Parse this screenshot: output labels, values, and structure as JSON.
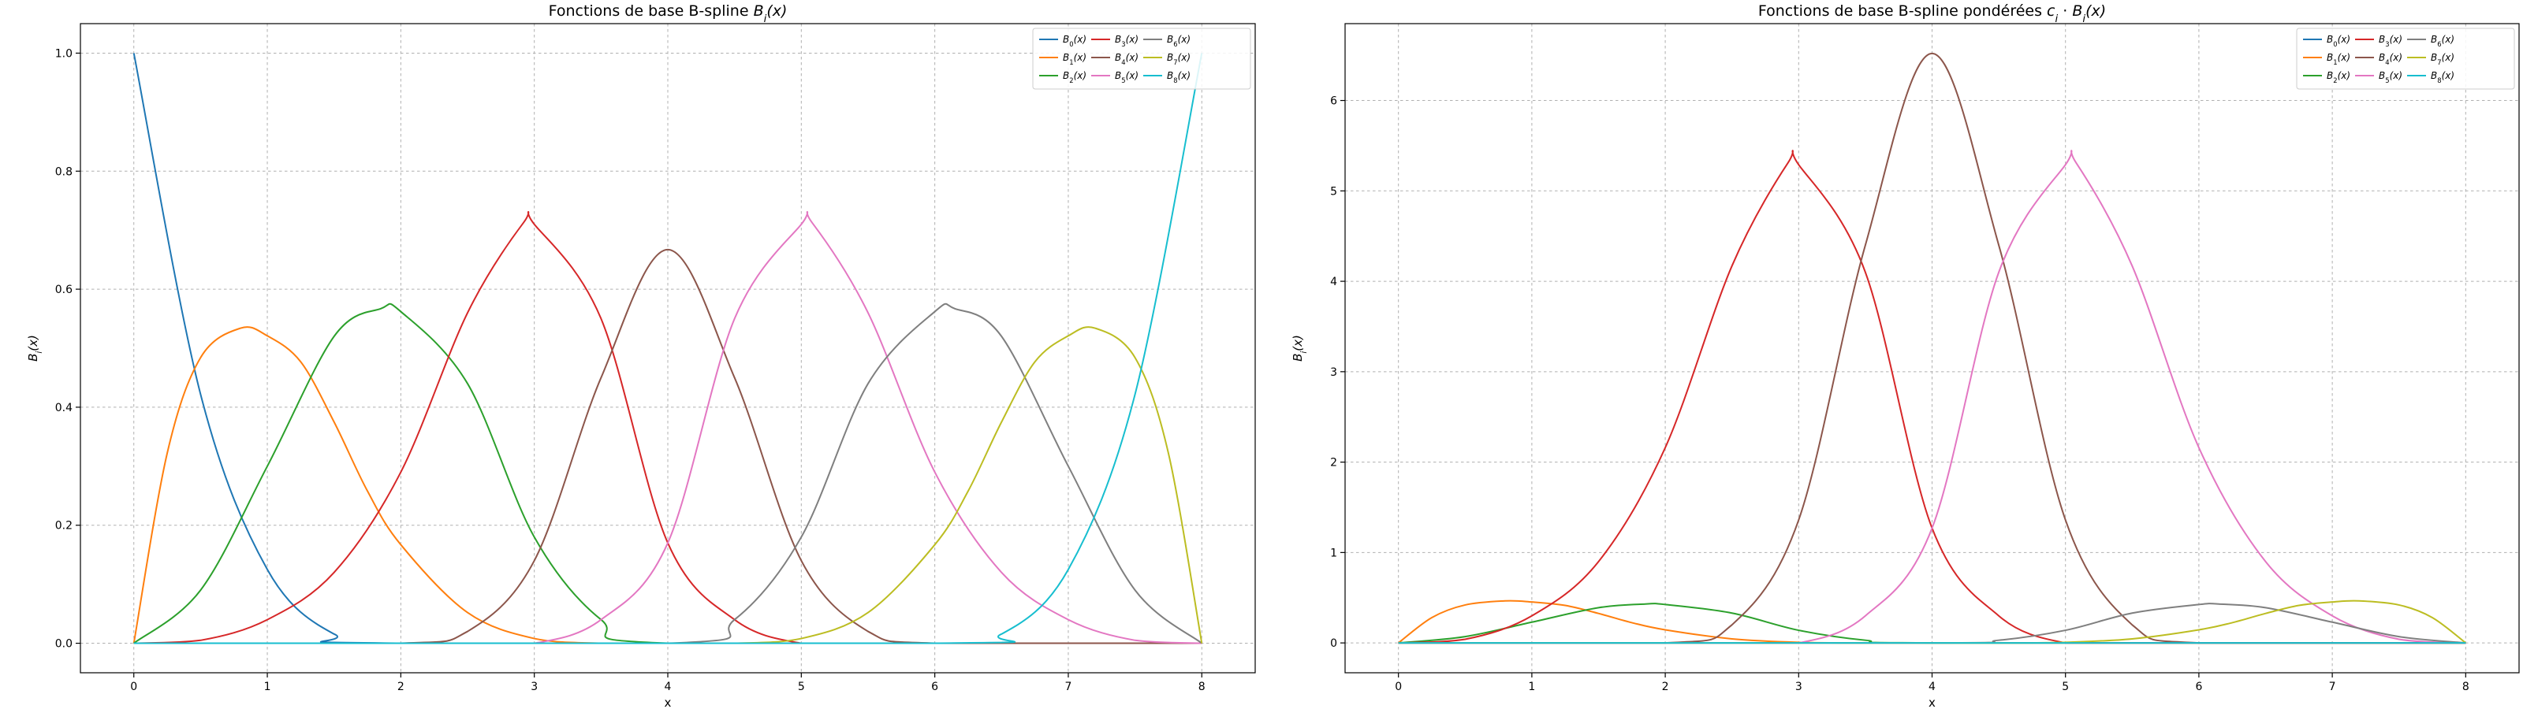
{
  "chart_data": [
    {
      "type": "line",
      "title": "Fonctions de base B-spline B_i(x)",
      "title_parts": [
        "Fonctions de base B-spline ",
        "B",
        "i",
        "(x)"
      ],
      "xlabel": "x",
      "ylabel_parts": [
        "B",
        "i",
        "(x)"
      ],
      "xlim": [
        -0.4,
        8.4
      ],
      "ylim": [
        -0.05,
        1.05
      ],
      "xticks": [
        0,
        1,
        2,
        3,
        4,
        5,
        6,
        7,
        8
      ],
      "yticks": [
        0.0,
        0.2,
        0.4,
        0.6,
        0.8,
        1.0
      ],
      "ytick_labels": [
        "0.0",
        "0.2",
        "0.4",
        "0.6",
        "0.8",
        "1.0"
      ],
      "grid": true,
      "legend": "top-right",
      "legend_columns": 4,
      "series": [
        {
          "name": "B_0(x)",
          "base": "B",
          "sub": "0",
          "suffix": "(x)",
          "color": "#1f77b4",
          "x": [
            0,
            0.5,
            1.0,
            1.5,
            2.0,
            8
          ],
          "y": [
            1.0,
            0.4219,
            0.125,
            0.0156,
            0.0,
            0.0
          ]
        },
        {
          "name": "B_1(x)",
          "base": "B",
          "sub": "1",
          "suffix": "(x)",
          "color": "#ff7f0e",
          "x": [
            0,
            0.25,
            0.5,
            0.8,
            1.0,
            1.25,
            1.5,
            1.75,
            2.0,
            2.5,
            3.0,
            3.5,
            4.0,
            8
          ],
          "y": [
            0.0,
            0.322,
            0.484,
            0.534,
            0.521,
            0.477,
            0.375,
            0.258,
            0.167,
            0.052,
            0.008,
            0.0,
            0.0,
            0.0
          ]
        },
        {
          "name": "B_2(x)",
          "base": "B",
          "sub": "2",
          "suffix": "(x)",
          "color": "#2ca02c",
          "x": [
            0,
            0.5,
            1.0,
            1.5,
            1.85,
            2.0,
            2.5,
            3.0,
            3.5,
            4.0,
            8
          ],
          "y": [
            0.0,
            0.09,
            0.3,
            0.52,
            0.567,
            0.562,
            0.44,
            0.18,
            0.04,
            0.0,
            0.0
          ]
        },
        {
          "name": "B_3(x)",
          "base": "B",
          "sub": "3",
          "suffix": "(x)",
          "color": "#d62728",
          "x": [
            0,
            0.5,
            1.0,
            1.5,
            2.0,
            2.5,
            2.92,
            3.0,
            3.5,
            4.0,
            4.5,
            5.0,
            5.5,
            8
          ],
          "y": [
            0.0,
            0.005,
            0.04,
            0.12,
            0.29,
            0.56,
            0.713,
            0.71,
            0.55,
            0.17,
            0.04,
            0.0,
            0.0,
            0.0
          ]
        },
        {
          "name": "B_4(x)",
          "base": "B",
          "sub": "4",
          "suffix": "(x)",
          "color": "#8c564b",
          "x": [
            0,
            2.0,
            2.5,
            3.0,
            3.5,
            4.0,
            4.5,
            5.0,
            5.5,
            6.0,
            8
          ],
          "y": [
            0.0,
            0.0,
            0.02,
            0.14,
            0.45,
            0.667,
            0.45,
            0.14,
            0.02,
            0.0,
            0.0
          ]
        },
        {
          "name": "B_5(x)",
          "base": "B",
          "sub": "5",
          "suffix": "(x)",
          "color": "#e377c2",
          "x": [
            0,
            2.5,
            3.0,
            3.5,
            4.0,
            4.5,
            5.0,
            5.08,
            5.5,
            6.0,
            6.5,
            7.0,
            7.5,
            8.0
          ],
          "y": [
            0.0,
            0.0,
            0.0,
            0.04,
            0.17,
            0.55,
            0.71,
            0.713,
            0.56,
            0.29,
            0.12,
            0.04,
            0.005,
            0.0
          ]
        },
        {
          "name": "B_6(x)",
          "base": "B",
          "sub": "6",
          "suffix": "(x)",
          "color": "#7f7f7f",
          "x": [
            0,
            4.0,
            4.5,
            5.0,
            5.5,
            6.0,
            6.15,
            6.5,
            7.0,
            7.5,
            8.0
          ],
          "y": [
            0.0,
            0.0,
            0.04,
            0.18,
            0.44,
            0.562,
            0.567,
            0.52,
            0.3,
            0.09,
            0.0
          ]
        },
        {
          "name": "B_7(x)",
          "base": "B",
          "sub": "7",
          "suffix": "(x)",
          "color": "#bcbd22",
          "x": [
            0,
            4.0,
            4.5,
            5.0,
            5.5,
            6.0,
            6.25,
            6.5,
            6.75,
            7.0,
            7.2,
            7.5,
            7.75,
            8.0
          ],
          "y": [
            0.0,
            0.0,
            0.0,
            0.008,
            0.052,
            0.167,
            0.258,
            0.375,
            0.477,
            0.521,
            0.534,
            0.484,
            0.322,
            0.0
          ]
        },
        {
          "name": "B_8(x)",
          "base": "B",
          "sub": "8",
          "suffix": "(x)",
          "color": "#17becf",
          "x": [
            0,
            6.0,
            6.5,
            7.0,
            7.5,
            8.0
          ],
          "y": [
            0.0,
            0.0,
            0.0156,
            0.125,
            0.4219,
            1.0
          ]
        }
      ]
    },
    {
      "type": "line",
      "title": "Fonctions de base B-spline pondérées c_i · B_i(x)",
      "title_parts": [
        "Fonctions de base B-spline pondérées ",
        "c",
        "i",
        " · ",
        "B",
        "i",
        "(x)"
      ],
      "xlabel": "x",
      "ylabel_parts": [
        "B",
        "i",
        "(x)"
      ],
      "xlim": [
        -0.4,
        8.4
      ],
      "ylim": [
        -0.33,
        6.85
      ],
      "xticks": [
        0,
        1,
        2,
        3,
        4,
        5,
        6,
        7,
        8
      ],
      "yticks": [
        0,
        1,
        2,
        3,
        4,
        5,
        6
      ],
      "ytick_labels": [
        "0",
        "1",
        "2",
        "3",
        "4",
        "5",
        "6"
      ],
      "grid": true,
      "legend": "top-right",
      "legend_columns": 4,
      "series": [
        {
          "name": "B_0(x)",
          "base": "B",
          "sub": "0",
          "suffix": "(x)",
          "color": "#1f77b4",
          "x": [
            0,
            8
          ],
          "y": [
            0.0,
            0.0
          ]
        },
        {
          "name": "B_1(x)",
          "base": "B",
          "sub": "1",
          "suffix": "(x)",
          "color": "#ff7f0e",
          "x": [
            0,
            0.25,
            0.5,
            0.8,
            1.0,
            1.25,
            1.5,
            1.75,
            2.0,
            2.5,
            3.0,
            3.5,
            4.0,
            8
          ],
          "y": [
            0.0,
            0.28,
            0.42,
            0.465,
            0.453,
            0.415,
            0.326,
            0.224,
            0.145,
            0.045,
            0.007,
            0.0,
            0.0,
            0.0
          ]
        },
        {
          "name": "B_2(x)",
          "base": "B",
          "sub": "2",
          "suffix": "(x)",
          "color": "#2ca02c",
          "x": [
            0,
            0.5,
            1.0,
            1.5,
            1.85,
            2.0,
            2.5,
            3.0,
            3.5,
            4.0,
            8
          ],
          "y": [
            0.0,
            0.07,
            0.23,
            0.39,
            0.43,
            0.425,
            0.33,
            0.14,
            0.03,
            0.0,
            0.0
          ]
        },
        {
          "name": "B_3(x)",
          "base": "B",
          "sub": "3",
          "suffix": "(x)",
          "color": "#d62728",
          "x": [
            0,
            0.5,
            1.0,
            1.5,
            2.0,
            2.5,
            2.92,
            3.0,
            3.5,
            4.0,
            4.5,
            5.0,
            5.5,
            8
          ],
          "y": [
            0.0,
            0.04,
            0.3,
            0.9,
            2.16,
            4.17,
            5.31,
            5.29,
            4.1,
            1.27,
            0.3,
            0.0,
            0.0,
            0.0
          ]
        },
        {
          "name": "B_4(x)",
          "base": "B",
          "sub": "4",
          "suffix": "(x)",
          "color": "#8c564b",
          "x": [
            0,
            2.0,
            2.5,
            3.0,
            3.5,
            4.0,
            4.5,
            5.0,
            5.5,
            6.0,
            8
          ],
          "y": [
            0.0,
            0.0,
            0.2,
            1.36,
            4.4,
            6.52,
            4.4,
            1.36,
            0.2,
            0.0,
            0.0
          ]
        },
        {
          "name": "B_5(x)",
          "base": "B",
          "sub": "5",
          "suffix": "(x)",
          "color": "#e377c2",
          "x": [
            0,
            2.5,
            3.0,
            3.5,
            4.0,
            4.5,
            5.0,
            5.08,
            5.5,
            6.0,
            6.5,
            7.0,
            7.5,
            8.0
          ],
          "y": [
            0.0,
            0.0,
            0.0,
            0.3,
            1.27,
            4.1,
            5.29,
            5.31,
            4.17,
            2.16,
            0.9,
            0.3,
            0.04,
            0.0
          ]
        },
        {
          "name": "B_6(x)",
          "base": "B",
          "sub": "6",
          "suffix": "(x)",
          "color": "#7f7f7f",
          "x": [
            0,
            4.0,
            4.5,
            5.0,
            5.5,
            6.0,
            6.15,
            6.5,
            7.0,
            7.5,
            8.0
          ],
          "y": [
            0.0,
            0.0,
            0.03,
            0.14,
            0.33,
            0.425,
            0.43,
            0.39,
            0.23,
            0.07,
            0.0
          ]
        },
        {
          "name": "B_7(x)",
          "base": "B",
          "sub": "7",
          "suffix": "(x)",
          "color": "#bcbd22",
          "x": [
            0,
            4.0,
            4.5,
            5.0,
            5.5,
            6.0,
            6.25,
            6.5,
            6.75,
            7.0,
            7.2,
            7.5,
            7.75,
            8.0
          ],
          "y": [
            0.0,
            0.0,
            0.0,
            0.007,
            0.045,
            0.145,
            0.224,
            0.326,
            0.415,
            0.453,
            0.465,
            0.42,
            0.28,
            0.0
          ]
        },
        {
          "name": "B_8(x)",
          "base": "B",
          "sub": "8",
          "suffix": "(x)",
          "color": "#17becf",
          "x": [
            0,
            8
          ],
          "y": [
            0.0,
            0.0
          ]
        }
      ]
    }
  ]
}
